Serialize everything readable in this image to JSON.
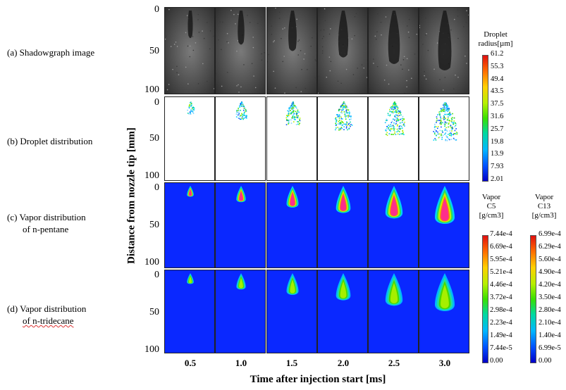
{
  "rows": [
    {
      "id": "shadow",
      "label_lines": [
        "(a) Shadowgraph image"
      ]
    },
    {
      "id": "droplet",
      "label_lines": [
        "(b) Droplet distribution"
      ]
    },
    {
      "id": "c5",
      "label_lines": [
        "(c) Vapor distribution",
        "of n-pentane"
      ]
    },
    {
      "id": "c13",
      "label_lines": [
        "(d) Vapor distribution",
        "of n-tridecane"
      ]
    }
  ],
  "axes": {
    "ylabel": "Distance from nozzle tip [mm]",
    "xlabel": "Time after injection start [ms]",
    "y_ticks": [
      "0",
      "50",
      "100"
    ],
    "time_ticks": [
      "0.5",
      "1.0",
      "1.5",
      "2.0",
      "2.5",
      "3.0"
    ]
  },
  "colorbars": {
    "droplet": {
      "title_lines": [
        "Droplet",
        "radius[µm]"
      ],
      "ticks": [
        "61.2",
        "55.3",
        "49.4",
        "43.5",
        "37.5",
        "31.6",
        "25.7",
        "19.8",
        "13.9",
        "7.93",
        "2.01"
      ]
    },
    "c5": {
      "title_lines": [
        "Vapor",
        "C5",
        "[g/cm3]"
      ],
      "ticks": [
        "7.44e-4",
        "6.69e-4",
        "5.95e-4",
        "5.21e-4",
        "4.46e-4",
        "3.72e-4",
        "2.98e-4",
        "2.23e-4",
        "1.49e-4",
        "7.44e-5",
        "0.00"
      ]
    },
    "c13": {
      "title_lines": [
        "Vapor",
        "C13",
        "[g/cm3]"
      ],
      "ticks": [
        "6.99e-4",
        "6.29e-4",
        "5.60e-4",
        "4.90e-4",
        "4.20e-4",
        "3.50e-4",
        "2.80e-4",
        "2.10e-4",
        "1.40e-4",
        "6.99e-5",
        "0.00"
      ]
    }
  },
  "colors": {
    "vapor_background": "#0a28ff",
    "shadow_background": "#4a4a4a",
    "panel_border": "#222222"
  }
}
